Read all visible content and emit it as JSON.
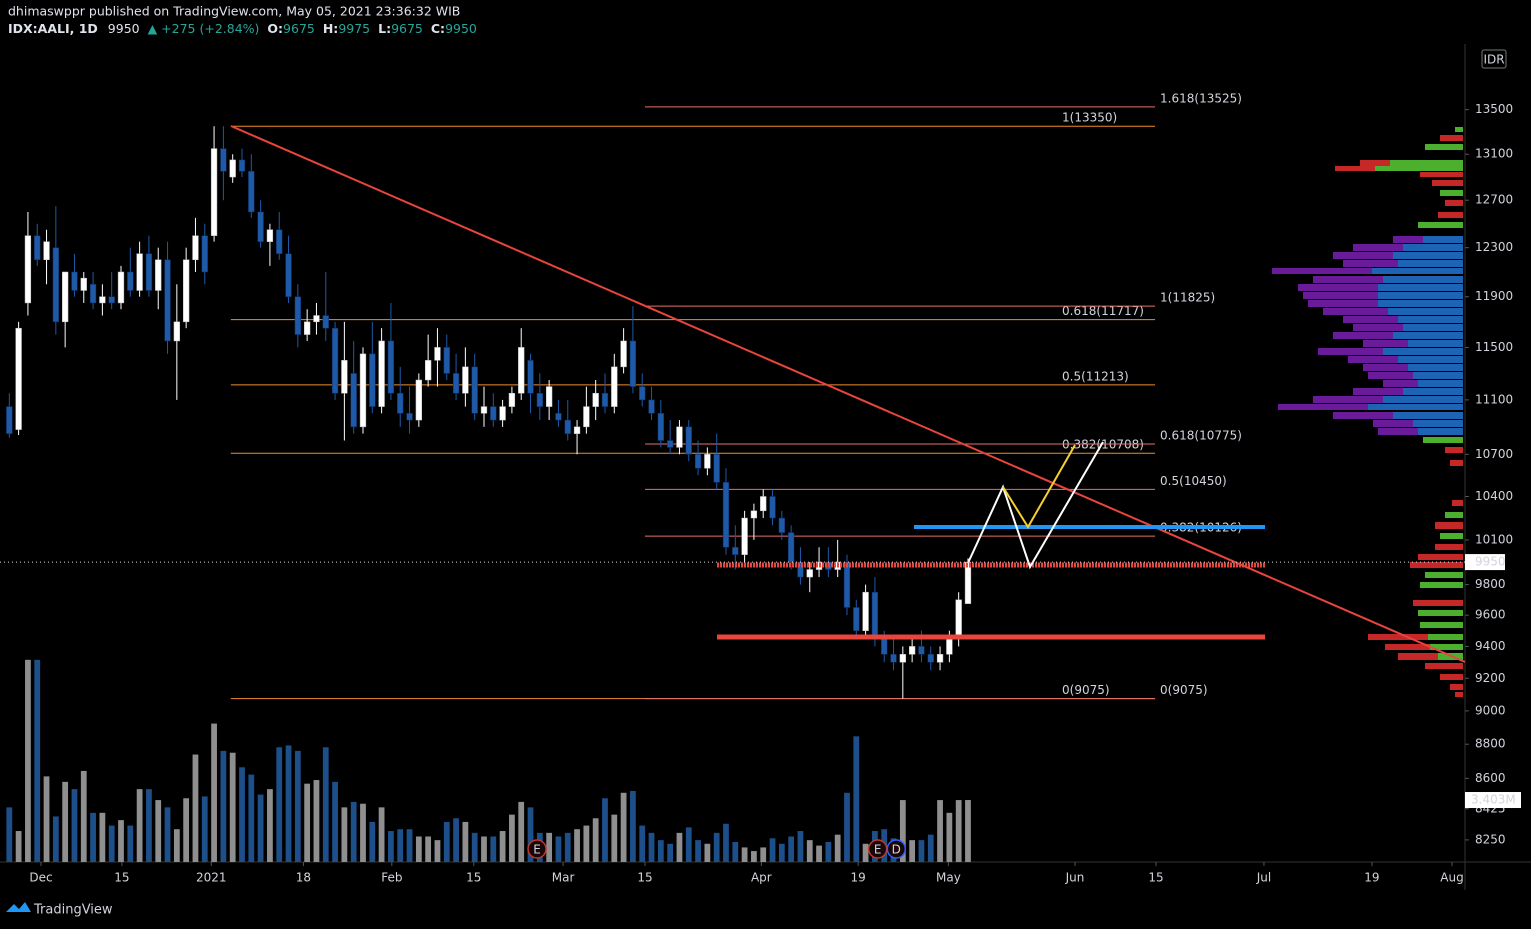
{
  "chart_data": {
    "type": "candlestick",
    "title": "dhimaswppr published on TradingView.com, May 05, 2021 23:36:32 WIB",
    "symbol": "IDX:AALI, 1D",
    "change": "▲ +275 (+2.84%)",
    "ohlc_labels": [
      "O:",
      "H:",
      "L:",
      "C:"
    ],
    "currency": "IDR",
    "brand": "TradingView",
    "log": true,
    "up_color": "#ffffff",
    "down_color": "#1e5aa8",
    "volume_up_color": "#8f8f8f",
    "volume_down_color": "#1d4f8a",
    "ylim": [
      8128,
      14111
    ],
    "yticks": [
      13500,
      13100,
      12700,
      12300,
      11900,
      11500,
      11100,
      10700,
      10400,
      10100,
      9800,
      9600,
      9400,
      9200,
      9000,
      8800,
      8600,
      8425,
      8250
    ],
    "xlim": [
      -1,
      156.4
    ],
    "xticks": [
      {
        "value": 3.4,
        "label": "Dec"
      },
      {
        "value": 12.1,
        "label": "15"
      },
      {
        "value": 21.7,
        "label": "2021"
      },
      {
        "value": 31.6,
        "label": "18"
      },
      {
        "value": 41.1,
        "label": "Feb"
      },
      {
        "value": 49.9,
        "label": "15"
      },
      {
        "value": 59.5,
        "label": "Mar"
      },
      {
        "value": 68.3,
        "label": "15"
      },
      {
        "value": 80.8,
        "label": "Apr"
      },
      {
        "value": 91.2,
        "label": "19"
      },
      {
        "value": 100.9,
        "label": "May"
      },
      {
        "value": 114.5,
        "label": "Jun"
      },
      {
        "value": 123.2,
        "label": "15"
      },
      {
        "value": 134.8,
        "label": "Jul"
      },
      {
        "value": 146.4,
        "label": "19"
      },
      {
        "value": 155.0,
        "label": "Aug"
      }
    ],
    "candles": [
      [
        11050,
        11150,
        10820,
        10850
      ],
      [
        10880,
        11700,
        10840,
        11650
      ],
      [
        11850,
        12600,
        11750,
        12400
      ],
      [
        12400,
        12500,
        12150,
        12200
      ],
      [
        12200,
        12450,
        12000,
        12350
      ],
      [
        12300,
        12650,
        11600,
        11700
      ],
      [
        11700,
        12100,
        11500,
        12100
      ],
      [
        12100,
        12250,
        11900,
        11950
      ],
      [
        11950,
        12100,
        11850,
        12050
      ],
      [
        12000,
        12100,
        11800,
        11850
      ],
      [
        11850,
        12000,
        11750,
        11900
      ],
      [
        11900,
        12100,
        11800,
        11850
      ],
      [
        11850,
        12150,
        11800,
        12100
      ],
      [
        12100,
        12300,
        11900,
        11950
      ],
      [
        11950,
        12350,
        11900,
        12250
      ],
      [
        12250,
        12400,
        11900,
        11950
      ],
      [
        11950,
        12300,
        11800,
        12200
      ],
      [
        12200,
        12350,
        11450,
        11550
      ],
      [
        11550,
        12000,
        11100,
        11700
      ],
      [
        11700,
        12300,
        11650,
        12200
      ],
      [
        12200,
        12550,
        12100,
        12400
      ],
      [
        12400,
        12500,
        12000,
        12100
      ],
      [
        12400,
        13350,
        12350,
        13150
      ],
      [
        13150,
        13350,
        12700,
        12950
      ],
      [
        12900,
        13100,
        12850,
        13050
      ],
      [
        13050,
        13150,
        12900,
        12950
      ],
      [
        12950,
        13100,
        12550,
        12600
      ],
      [
        12600,
        12700,
        12300,
        12350
      ],
      [
        12350,
        12500,
        12150,
        12450
      ],
      [
        12450,
        12600,
        12200,
        12250
      ],
      [
        12250,
        12400,
        11850,
        11900
      ],
      [
        11900,
        12000,
        11500,
        11600
      ],
      [
        11600,
        11800,
        11550,
        11700
      ],
      [
        11700,
        11850,
        11600,
        11750
      ],
      [
        11750,
        12100,
        11550,
        11650
      ],
      [
        11650,
        11700,
        11100,
        11150
      ],
      [
        11150,
        11700,
        10800,
        11400
      ],
      [
        11300,
        11550,
        10850,
        10900
      ],
      [
        10900,
        11500,
        10850,
        11450
      ],
      [
        11450,
        11700,
        11000,
        11050
      ],
      [
        11050,
        11650,
        11000,
        11550
      ],
      [
        11550,
        11850,
        11100,
        11150
      ],
      [
        11150,
        11350,
        10900,
        11000
      ],
      [
        11000,
        11200,
        10850,
        10950
      ],
      [
        10950,
        11300,
        10900,
        11250
      ],
      [
        11250,
        11600,
        11200,
        11400
      ],
      [
        11400,
        11650,
        11200,
        11500
      ],
      [
        11500,
        11600,
        11250,
        11300
      ],
      [
        11300,
        11450,
        11100,
        11150
      ],
      [
        11150,
        11500,
        11050,
        11350
      ],
      [
        11350,
        11450,
        10950,
        11000
      ],
      [
        11000,
        11200,
        10900,
        11050
      ],
      [
        11050,
        11150,
        10900,
        10950
      ],
      [
        10950,
        11100,
        10900,
        11050
      ],
      [
        11050,
        11200,
        11000,
        11150
      ],
      [
        11150,
        11650,
        11100,
        11500
      ],
      [
        11400,
        11450,
        11000,
        11150
      ],
      [
        11150,
        11300,
        10950,
        11050
      ],
      [
        11050,
        11250,
        10950,
        11200
      ],
      [
        11000,
        11100,
        10900,
        10950
      ],
      [
        10950,
        11100,
        10800,
        10850
      ],
      [
        10850,
        10950,
        10700,
        10900
      ],
      [
        10900,
        11200,
        10850,
        11050
      ],
      [
        11050,
        11250,
        10950,
        11150
      ],
      [
        11150,
        11300,
        11000,
        11050
      ],
      [
        11050,
        11450,
        11000,
        11350
      ],
      [
        11350,
        11650,
        11300,
        11550
      ],
      [
        11550,
        11825,
        11150,
        11200
      ],
      [
        11200,
        11300,
        11050,
        11100
      ],
      [
        11100,
        11200,
        10950,
        11000
      ],
      [
        11000,
        11100,
        10750,
        10800
      ],
      [
        10800,
        10950,
        10700,
        10750
      ],
      [
        10750,
        10950,
        10700,
        10900
      ],
      [
        10900,
        10950,
        10650,
        10700
      ],
      [
        10700,
        10800,
        10550,
        10600
      ],
      [
        10600,
        10750,
        10550,
        10700
      ],
      [
        10700,
        10850,
        10450,
        10500
      ],
      [
        10500,
        10600,
        10000,
        10050
      ],
      [
        10050,
        10200,
        9900,
        10000
      ],
      [
        10000,
        10300,
        9950,
        10250
      ],
      [
        10250,
        10350,
        10100,
        10300
      ],
      [
        10300,
        10450,
        10250,
        10400
      ],
      [
        10400,
        10450,
        10200,
        10250
      ],
      [
        10250,
        10300,
        10100,
        10150
      ],
      [
        10150,
        10200,
        9900,
        9950
      ],
      [
        9950,
        10050,
        9800,
        9850
      ],
      [
        9850,
        9950,
        9750,
        9900
      ],
      [
        9900,
        10050,
        9850,
        9950
      ],
      [
        9950,
        10050,
        9850,
        9900
      ],
      [
        9900,
        10100,
        9850,
        9950
      ],
      [
        9950,
        10000,
        9600,
        9650
      ],
      [
        9650,
        9700,
        9450,
        9500
      ],
      [
        9500,
        9800,
        9450,
        9750
      ],
      [
        9750,
        9850,
        9400,
        9450
      ],
      [
        9450,
        9500,
        9300,
        9350
      ],
      [
        9350,
        9450,
        9250,
        9300
      ],
      [
        9300,
        9400,
        9075,
        9350
      ],
      [
        9350,
        9450,
        9300,
        9400
      ],
      [
        9400,
        9500,
        9300,
        9350
      ],
      [
        9350,
        9400,
        9250,
        9300
      ],
      [
        9300,
        9400,
        9250,
        9350
      ],
      [
        9350,
        9500,
        9300,
        9450
      ],
      [
        9450,
        9750,
        9400,
        9700
      ],
      [
        9675,
        9975,
        9675,
        9950
      ]
    ],
    "volume": [
      3.0,
      1.7,
      11.1,
      11.1,
      4.7,
      2.5,
      4.4,
      4.0,
      5.0,
      2.7,
      2.7,
      2.0,
      2.3,
      2.0,
      4.0,
      4.0,
      3.4,
      3.0,
      1.8,
      3.5,
      5.9,
      3.6,
      7.6,
      6.1,
      6.0,
      5.2,
      4.8,
      3.7,
      4.0,
      6.3,
      6.4,
      6.1,
      4.3,
      4.5,
      6.3,
      4.4,
      3.0,
      3.3,
      3.2,
      2.2,
      3.0,
      1.7,
      1.8,
      1.8,
      1.4,
      1.4,
      1.2,
      2.2,
      2.4,
      2.2,
      1.6,
      1.4,
      1.4,
      1.7,
      2.6,
      3.3,
      3.0,
      1.6,
      1.6,
      1.4,
      1.6,
      1.8,
      2.0,
      2.4,
      3.5,
      2.6,
      3.8,
      3.9,
      2.0,
      1.6,
      1.2,
      1.0,
      1.6,
      1.9,
      1.2,
      1.0,
      1.6,
      2.1,
      1.1,
      0.8,
      0.6,
      0.8,
      1.3,
      1.0,
      1.4,
      1.7,
      1.2,
      0.9,
      1.1,
      1.5,
      3.8,
      6.9,
      1.0,
      1.7,
      1.8,
      1.3,
      3.4,
      1.2,
      1.2,
      1.5,
      3.4,
      2.7,
      3.4,
      3.403
    ],
    "volume_lim": [
      0,
      11.2
    ],
    "last_volume_label": "3.403M",
    "fib_sets": [
      {
        "color": "#f08c2e",
        "start": 23.8,
        "end": 123.1,
        "levels": [
          {
            "label": "1(13350)",
            "value": 13350
          },
          {
            "label": "0.618(11717)",
            "value": 11717
          },
          {
            "label": "0.5(11213)",
            "value": 11213
          },
          {
            "label": "0.382(10708)",
            "value": 10708
          },
          {
            "label": "0(9075)",
            "value": 9075
          }
        ]
      },
      {
        "color": "#e8706a",
        "start": 68.3,
        "end": 123.1,
        "levels": [
          {
            "label": "1.618(13525)",
            "value": 13525
          },
          {
            "label": "1(11825)",
            "value": 11825
          },
          {
            "label": "0.618(10775)",
            "value": 10775
          },
          {
            "label": "0.5(10450)",
            "value": 10450
          },
          {
            "label": "0.382(10126)",
            "value": 10126
          },
          {
            "label": "0(9075)",
            "value": 9075
          }
        ]
      }
    ],
    "events": [
      {
        "label": "E",
        "value": 56.7,
        "color": "#c0392b"
      },
      {
        "label": "E",
        "value": 93.3,
        "color": "#c0392b"
      },
      {
        "label": "D",
        "value": 95.3,
        "color": "#2962ff"
      }
    ]
  }
}
